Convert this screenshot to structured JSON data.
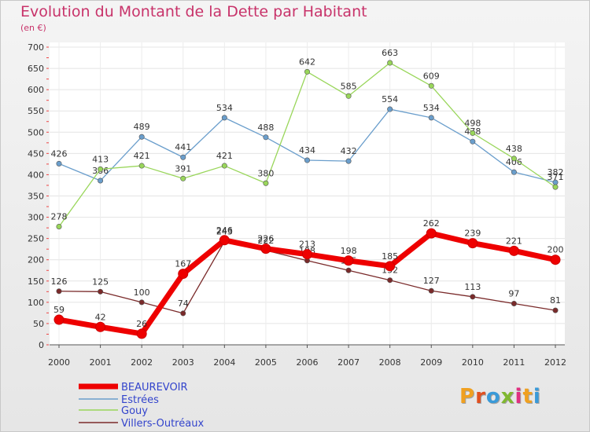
{
  "title": "Evolution du Montant de la Dette par Habitant",
  "unit": "(en €)",
  "logo": {
    "text": "Proxiti",
    "letters": [
      {
        "ch": "P",
        "color": "#f0a020"
      },
      {
        "ch": "r",
        "color": "#e05020"
      },
      {
        "ch": "o",
        "color": "#3a9ad8"
      },
      {
        "ch": "x",
        "color": "#80b830"
      },
      {
        "ch": "i",
        "color": "#e03080"
      },
      {
        "ch": "t",
        "color": "#f0a020"
      },
      {
        "ch": "i",
        "color": "#3a9ad8"
      }
    ]
  },
  "chart_data": {
    "type": "line",
    "x": [
      "2000",
      "2001",
      "2002",
      "2003",
      "2004",
      "2005",
      "2006",
      "2007",
      "2008",
      "2009",
      "2010",
      "2011",
      "2012"
    ],
    "ylim": [
      0,
      700
    ],
    "yticks": [
      0,
      50,
      100,
      150,
      200,
      250,
      300,
      350,
      400,
      450,
      500,
      550,
      600,
      650,
      700
    ],
    "grid": true,
    "legend_position": "bottom-left",
    "series": [
      {
        "name": "BEAUREVOIR",
        "color": "#ee0000",
        "values": [
          59,
          42,
          26,
          167,
          246,
          226,
          213,
          198,
          185,
          262,
          239,
          221,
          200
        ]
      },
      {
        "name": "Estrées",
        "color": "#6a9ecc",
        "values": [
          426,
          386,
          489,
          441,
          534,
          488,
          434,
          432,
          554,
          534,
          478,
          406,
          382
        ]
      },
      {
        "name": "Gouy",
        "color": "#99d65a",
        "values": [
          278,
          413,
          421,
          391,
          421,
          380,
          642,
          585,
          663,
          609,
          498,
          438,
          371
        ]
      },
      {
        "name": "Villers-Outréaux",
        "color": "#7a2a2a",
        "values": [
          126,
          125,
          100,
          74,
          243,
          222,
          198,
          175,
          152,
          127,
          113,
          97,
          81
        ]
      }
    ]
  }
}
